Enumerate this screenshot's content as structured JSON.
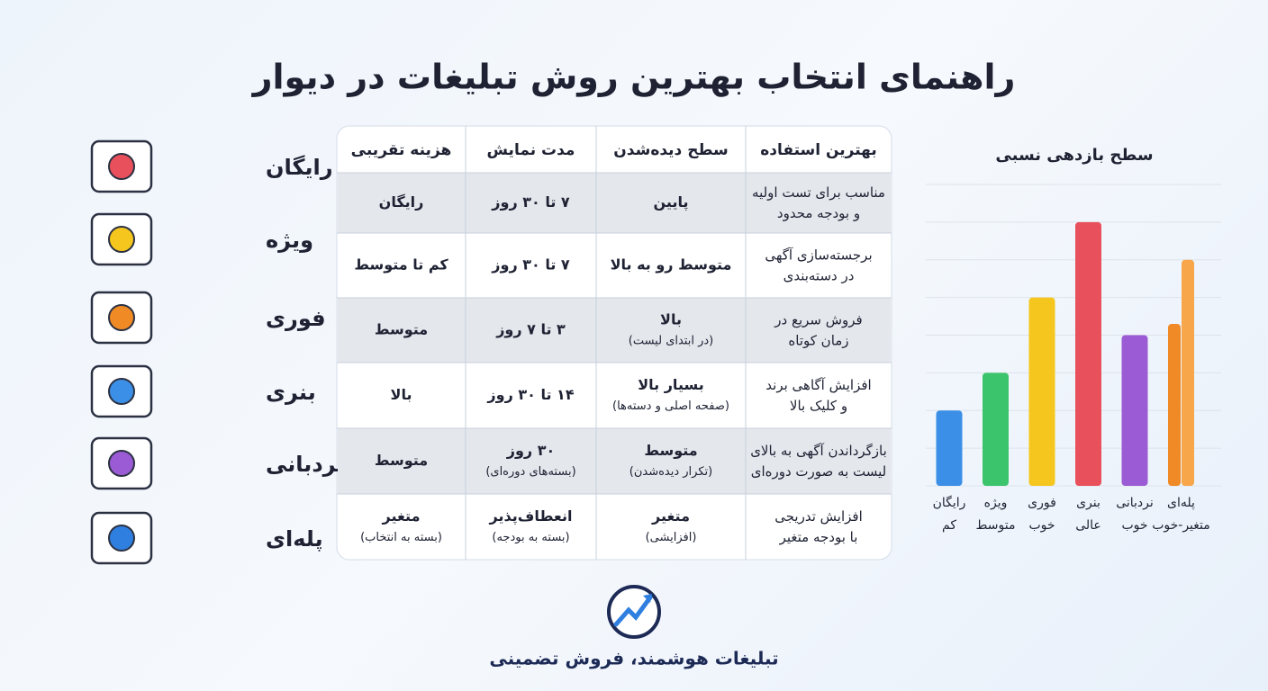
{
  "header": {
    "title": "راهنمای انتخاب بهترین روش تبلیغات در دیوار"
  },
  "types": [
    "رایگان",
    "ویژه",
    "فوری",
    "بنری",
    "نردبانی",
    "پله‌ای"
  ],
  "table": {
    "headers": [
      "بهترین استفاده",
      "سطح دیده‌شدن",
      "مدت نمایش",
      "هزینه تقریبی"
    ],
    "rows": [
      [
        [
          "مناسب برای تست اولیه",
          "و بودجه محدود"
        ],
        [
          "پایین"
        ],
        [
          "۷ تا ۳۰ روز"
        ],
        [
          "رایگان"
        ]
      ],
      [
        [
          "برجسته‌سازی آگهی",
          "در دسته‌بندی"
        ],
        [
          "متوسط رو به بالا"
        ],
        [
          "۷ تا ۳۰ روز"
        ],
        [
          "کم تا متوسط"
        ]
      ],
      [
        [
          "فروش سریع در",
          "زمان کوتاه"
        ],
        [
          "بالا",
          "(در ابتدای لیست)"
        ],
        [
          "۳ تا ۷ روز"
        ],
        [
          "متوسط"
        ]
      ],
      [
        [
          "افزایش آگاهی برند",
          "و کلیک بالا"
        ],
        [
          "بسیار بالا",
          "(صفحه اصلی و دسته‌ها)"
        ],
        [
          "۱۴ تا ۳۰ روز"
        ],
        [
          "بالا"
        ]
      ],
      [
        [
          "بازگرداندن آگهی به بالای",
          "لیست به صورت دوره‌ای"
        ],
        [
          "متوسط",
          "(تکرار دیده‌شدن)"
        ],
        [
          "۳۰ روز",
          "(بسته‌های دوره‌ای)"
        ],
        [
          "متوسط"
        ]
      ],
      [
        [
          "افزایش تدریجی",
          "با بودجه متغیر"
        ],
        [
          "متغیر",
          "(افزایشی)"
        ],
        [
          "انعطاف‌پذیر",
          "(بسته به بودجه)"
        ],
        [
          "متغیر",
          "(بسته به انتخاب)"
        ]
      ]
    ]
  },
  "chart_data": {
    "type": "bar",
    "title": "سطح بازدهی نسبی",
    "categories": [
      "رایگان",
      "ویژه",
      "فوری",
      "بنری",
      "نردبانی",
      "پله‌ای"
    ],
    "levels": [
      "کم",
      "متوسط",
      "خوب",
      "عالی",
      "خوب",
      "متغیر-خوب"
    ],
    "series": [
      {
        "colors": [
          "#3b8fe6",
          "#3cc46c",
          "#f5c71e",
          "#e8505b",
          "#9b5bd4",
          "#ef8a26"
        ],
        "values": [
          2,
          3,
          5,
          7,
          4,
          4.3
        ]
      },
      {
        "color": "#f7a64a",
        "values": [
          null,
          null,
          null,
          null,
          null,
          6
        ]
      }
    ],
    "ylim": [
      0,
      8
    ],
    "yticks": [
      0,
      1,
      2,
      3,
      4,
      5,
      6,
      7,
      8
    ],
    "grid": true
  },
  "footer": {
    "tagline": "تبلیغات هوشمند، فروش تضمینی"
  }
}
